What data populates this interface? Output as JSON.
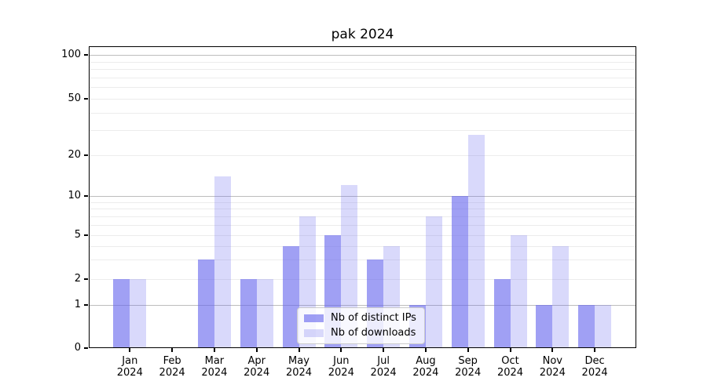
{
  "chart_data": {
    "type": "bar",
    "title": "pak 2024",
    "categories": [
      "Jan",
      "Feb",
      "Mar",
      "Apr",
      "May",
      "Jun",
      "Jul",
      "Aug",
      "Sep",
      "Oct",
      "Nov",
      "Dec"
    ],
    "x_year_label": "2024",
    "series": [
      {
        "name": "Nb of distinct IPs",
        "color": "rgba(102,102,238,0.62)",
        "values": [
          2,
          0,
          3,
          2,
          4,
          5,
          3,
          1,
          10,
          2,
          1,
          1
        ]
      },
      {
        "name": "Nb of downloads",
        "color": "rgba(102,102,238,0.25)",
        "values": [
          2,
          0,
          14,
          2,
          7,
          12,
          4,
          7,
          28,
          5,
          4,
          1
        ]
      }
    ],
    "y_axis": {
      "tick_labels": [
        "0",
        "1",
        "2",
        "5",
        "10",
        "20",
        "50",
        "100"
      ],
      "tick_values": [
        0,
        1,
        2,
        5,
        10,
        20,
        50,
        100
      ],
      "scale": "log-like",
      "major_grid_values": [
        1,
        10,
        100
      ],
      "minor_grid_values": [
        2,
        3,
        4,
        5,
        6,
        7,
        8,
        9,
        20,
        30,
        40,
        50,
        60,
        70,
        80,
        90
      ]
    },
    "legend_position": "lower center",
    "grid": "on",
    "colors": {
      "major_gridline": "#bdbdbd",
      "minor_gridline": "#ececec",
      "axis_spine": "#000000",
      "background": "#ffffff"
    }
  }
}
